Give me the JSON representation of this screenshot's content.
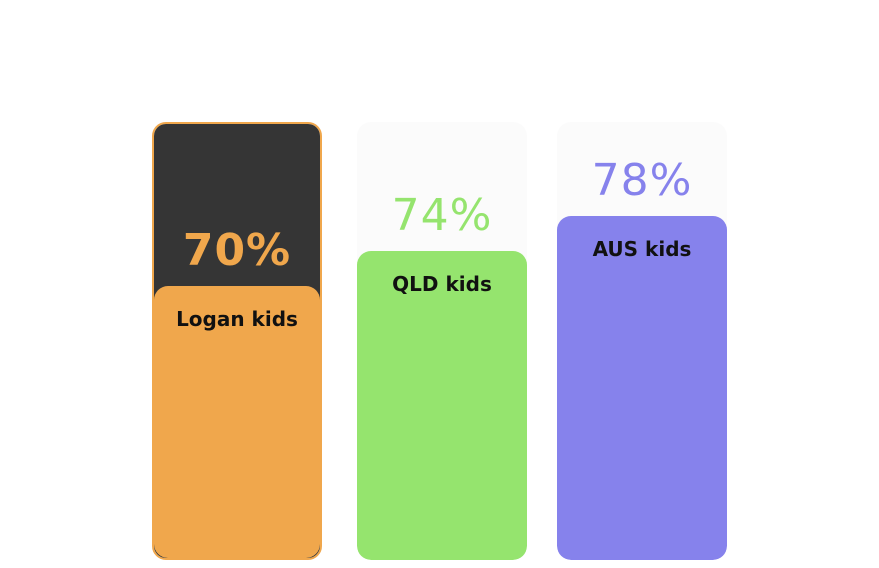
{
  "chart_data": {
    "type": "bar",
    "categories": [
      "Logan kids",
      "QLD kids",
      "AUS kids"
    ],
    "values": [
      70,
      74,
      78
    ],
    "value_labels": [
      "70%",
      "74%",
      "78%"
    ],
    "ylim": [
      0,
      100
    ],
    "grid": false,
    "highlighted_category": "Logan kids",
    "colors": {
      "Logan kids": "#f0a74c",
      "QLD kids": "#95e46e",
      "AUS kids": "#8682ec",
      "highlight_background": "#353535",
      "track_background": "#fbfbfb",
      "category_text": "#111111"
    }
  }
}
